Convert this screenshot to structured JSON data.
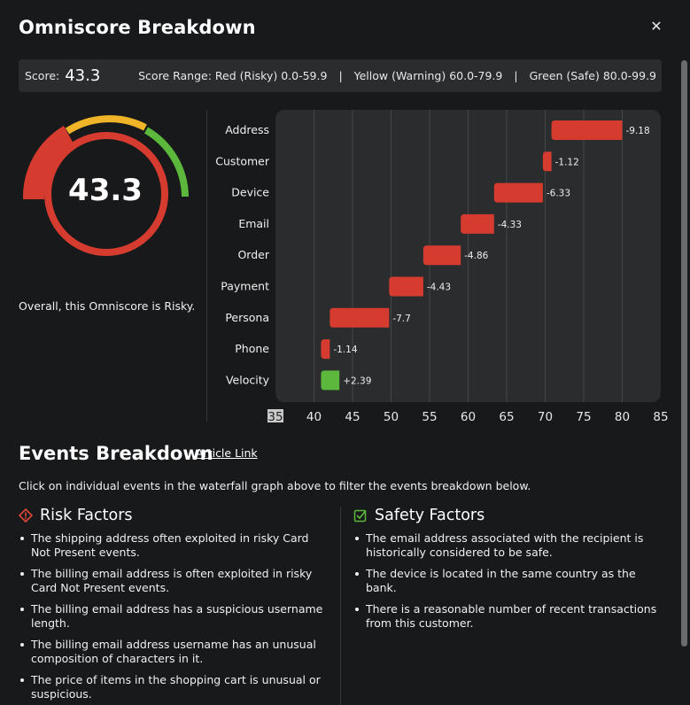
{
  "modal": {
    "title": "Omniscore Breakdown",
    "close_icon": "close-icon"
  },
  "score_bar": {
    "score_label": "Score:",
    "score_value": "43.3",
    "range_label": "Score Range:",
    "ranges": [
      "Red (Risky) 0.0-59.9",
      "Yellow (Warning) 60.0-79.9",
      "Green (Safe) 80.0-99.9"
    ],
    "separator": "|"
  },
  "gauge": {
    "value": 43.3,
    "display": "43.3",
    "colors": {
      "red": "#d63b2f",
      "yellow": "#f0b429",
      "green": "#5cb83c",
      "inner_ring": "#d63b2f"
    }
  },
  "overall_text": "Overall, this Omniscore is Risky.",
  "chart_data": {
    "type": "bar",
    "orientation": "horizontal-waterfall",
    "categories": [
      "Address",
      "Customer",
      "Device",
      "Email",
      "Order",
      "Payment",
      "Persona",
      "Phone",
      "Velocity"
    ],
    "values": [
      -9.18,
      -1.12,
      -6.33,
      -4.33,
      -4.86,
      -4.43,
      -7.7,
      -1.14,
      2.39
    ],
    "value_labels": [
      "-9.18",
      "-1.12",
      "-6.33",
      "-4.33",
      "-4.86",
      "-4.43",
      "-7.7",
      "-1.14",
      "+2.39"
    ],
    "start": 80,
    "end": 43.3,
    "xlim": [
      35,
      85
    ],
    "x_ticks": [
      "35",
      "40",
      "45",
      "50",
      "55",
      "60",
      "65",
      "70",
      "75",
      "80",
      "85"
    ],
    "grid": true,
    "colors": {
      "negative": "#d63b2f",
      "positive": "#5cb83c",
      "background": "#2b2c2e",
      "gridline": "#44464a"
    }
  },
  "events": {
    "title": "Events Breakdown",
    "article_link": "Article Link",
    "description": "Click on individual events in the waterfall graph above to filter the events breakdown below."
  },
  "risk_factors": {
    "title": "Risk Factors",
    "icon": "warning-diamond-icon",
    "items": [
      "The shipping address often exploited in risky Card Not Present events.",
      "The billing email address is often exploited in risky Card Not Present events.",
      "The billing email address has a suspicious username length.",
      "The billing email address username has an unusual composition of characters in it.",
      "The price of items in the shopping cart is unusual or suspicious."
    ]
  },
  "safety_factors": {
    "title": "Safety Factors",
    "icon": "check-square-icon",
    "items": [
      "The email address associated with the recipient is historically considered to be safe.",
      "The device is located in the same country as the bank.",
      "There is a reasonable number of recent transactions from this customer."
    ]
  }
}
